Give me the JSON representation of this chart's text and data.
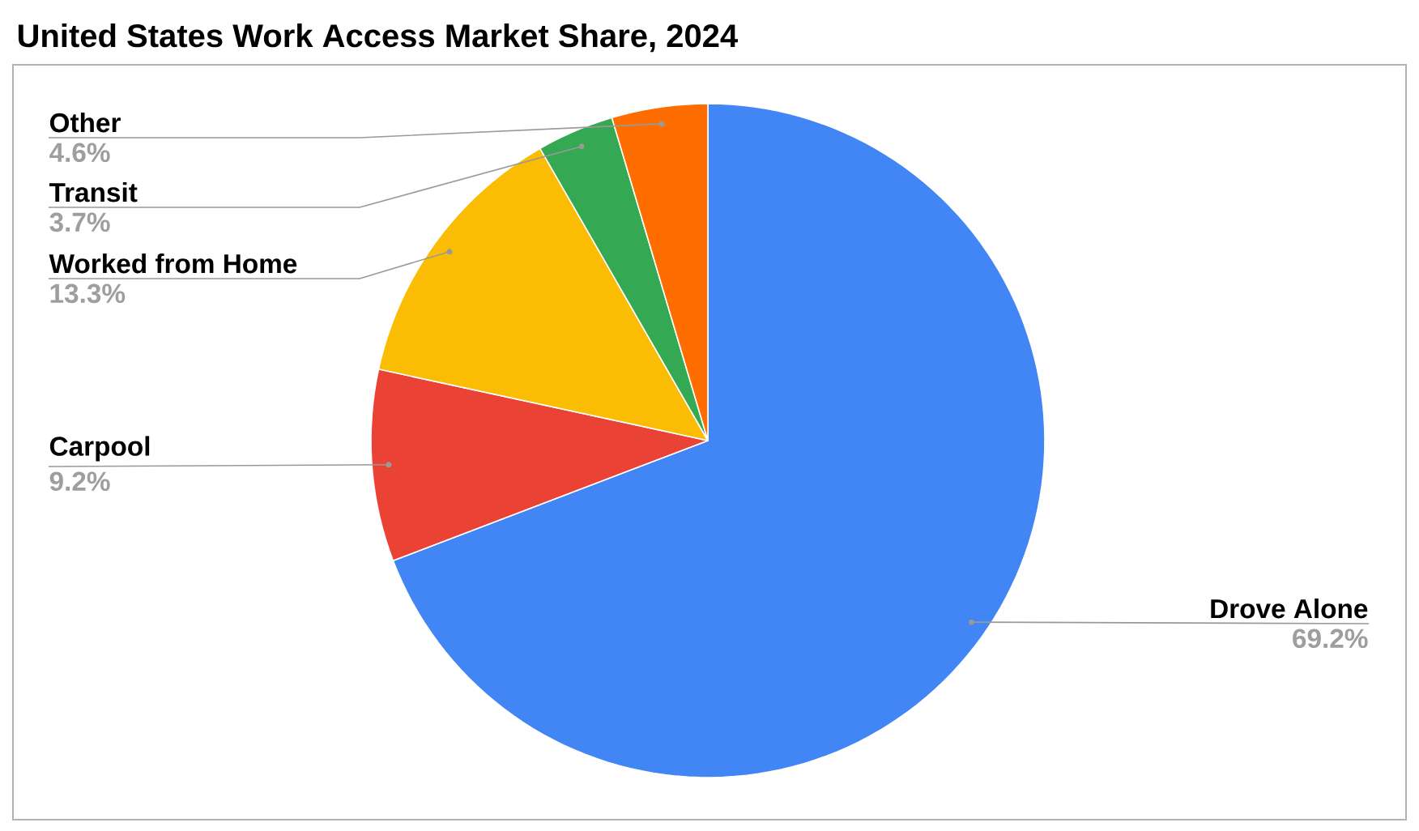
{
  "chart_data": {
    "type": "pie",
    "title": "United States Work Access Market Share, 2024",
    "categories": [
      "Drove Alone",
      "Carpool",
      "Worked from Home",
      "Transit",
      "Other"
    ],
    "values": [
      69.2,
      9.2,
      13.3,
      3.7,
      4.6
    ],
    "value_labels": [
      "69.2%",
      "9.2%",
      "13.3%",
      "3.7%",
      "4.6%"
    ],
    "colors": [
      "#4285f4",
      "#ea4335",
      "#fbbc04",
      "#34a853",
      "#ff6d01"
    ]
  }
}
